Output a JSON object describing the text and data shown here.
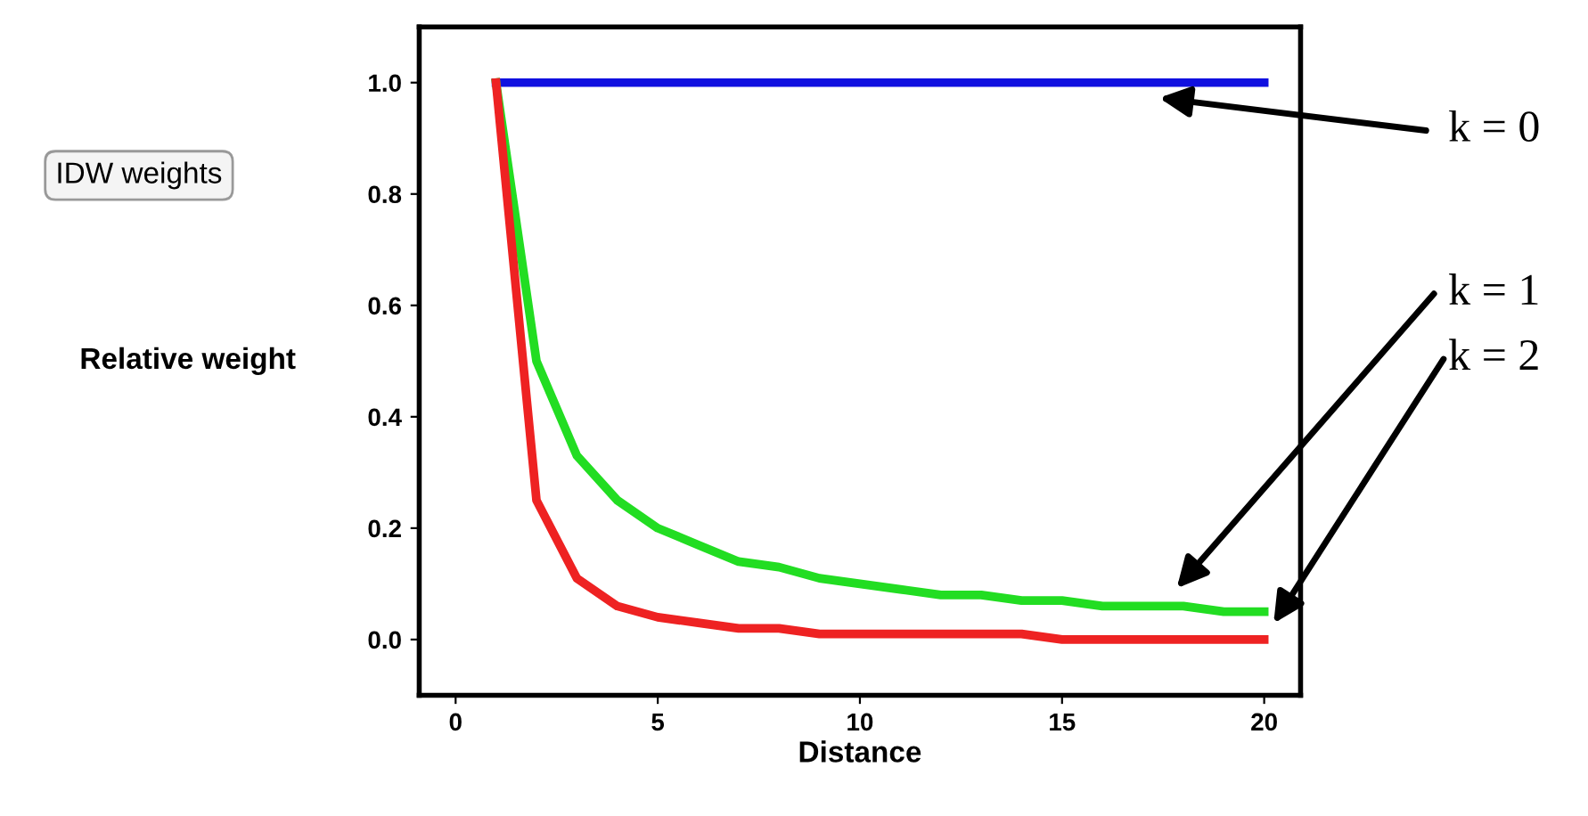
{
  "chart_data": {
    "type": "line",
    "xlabel": "Distance",
    "ylabel": "Relative weight",
    "x": [
      1,
      2,
      3,
      4,
      5,
      6,
      7,
      8,
      9,
      10,
      11,
      12,
      13,
      14,
      15,
      16,
      17,
      18,
      19,
      20
    ],
    "series": [
      {
        "color": "#1010e0",
        "values": [
          1,
          1,
          1,
          1,
          1,
          1,
          1,
          1,
          1,
          1,
          1,
          1,
          1,
          1,
          1,
          1,
          1,
          1,
          1,
          1
        ]
      },
      {
        "color": "#22dd22",
        "values": [
          1,
          0.5,
          0.33,
          0.25,
          0.2,
          0.17,
          0.14,
          0.13,
          0.11,
          0.1,
          0.09,
          0.08,
          0.08,
          0.07,
          0.07,
          0.06,
          0.06,
          0.06,
          0.05,
          0.05
        ]
      },
      {
        "color": "#ee2222",
        "values": [
          1,
          0.25,
          0.11,
          0.06,
          0.04,
          0.03,
          0.02,
          0.02,
          0.01,
          0.01,
          0.01,
          0.01,
          0.01,
          0.01,
          0.0,
          0.0,
          0.0,
          0.0,
          0.0,
          0.0
        ]
      }
    ],
    "xlim": [
      -0.9,
      20.9
    ],
    "ylim": [
      -0.1,
      1.1
    ],
    "xticks": [
      0,
      5,
      10,
      15,
      20
    ],
    "yticks": [
      {
        "value": 0,
        "label": "0.0"
      },
      {
        "value": 0.2,
        "label": "0.2"
      },
      {
        "value": 0.4,
        "label": "0.4"
      },
      {
        "value": 0.6,
        "label": "0.6"
      },
      {
        "value": 0.8,
        "label": "0.8"
      },
      {
        "value": 1,
        "label": "1.0"
      }
    ],
    "annotations": [
      "IDW weights",
      "k = 0",
      "k = 1",
      "k = 2"
    ],
    "grid": false,
    "legend": false,
    "marker": "none",
    "line_style": "solid"
  }
}
